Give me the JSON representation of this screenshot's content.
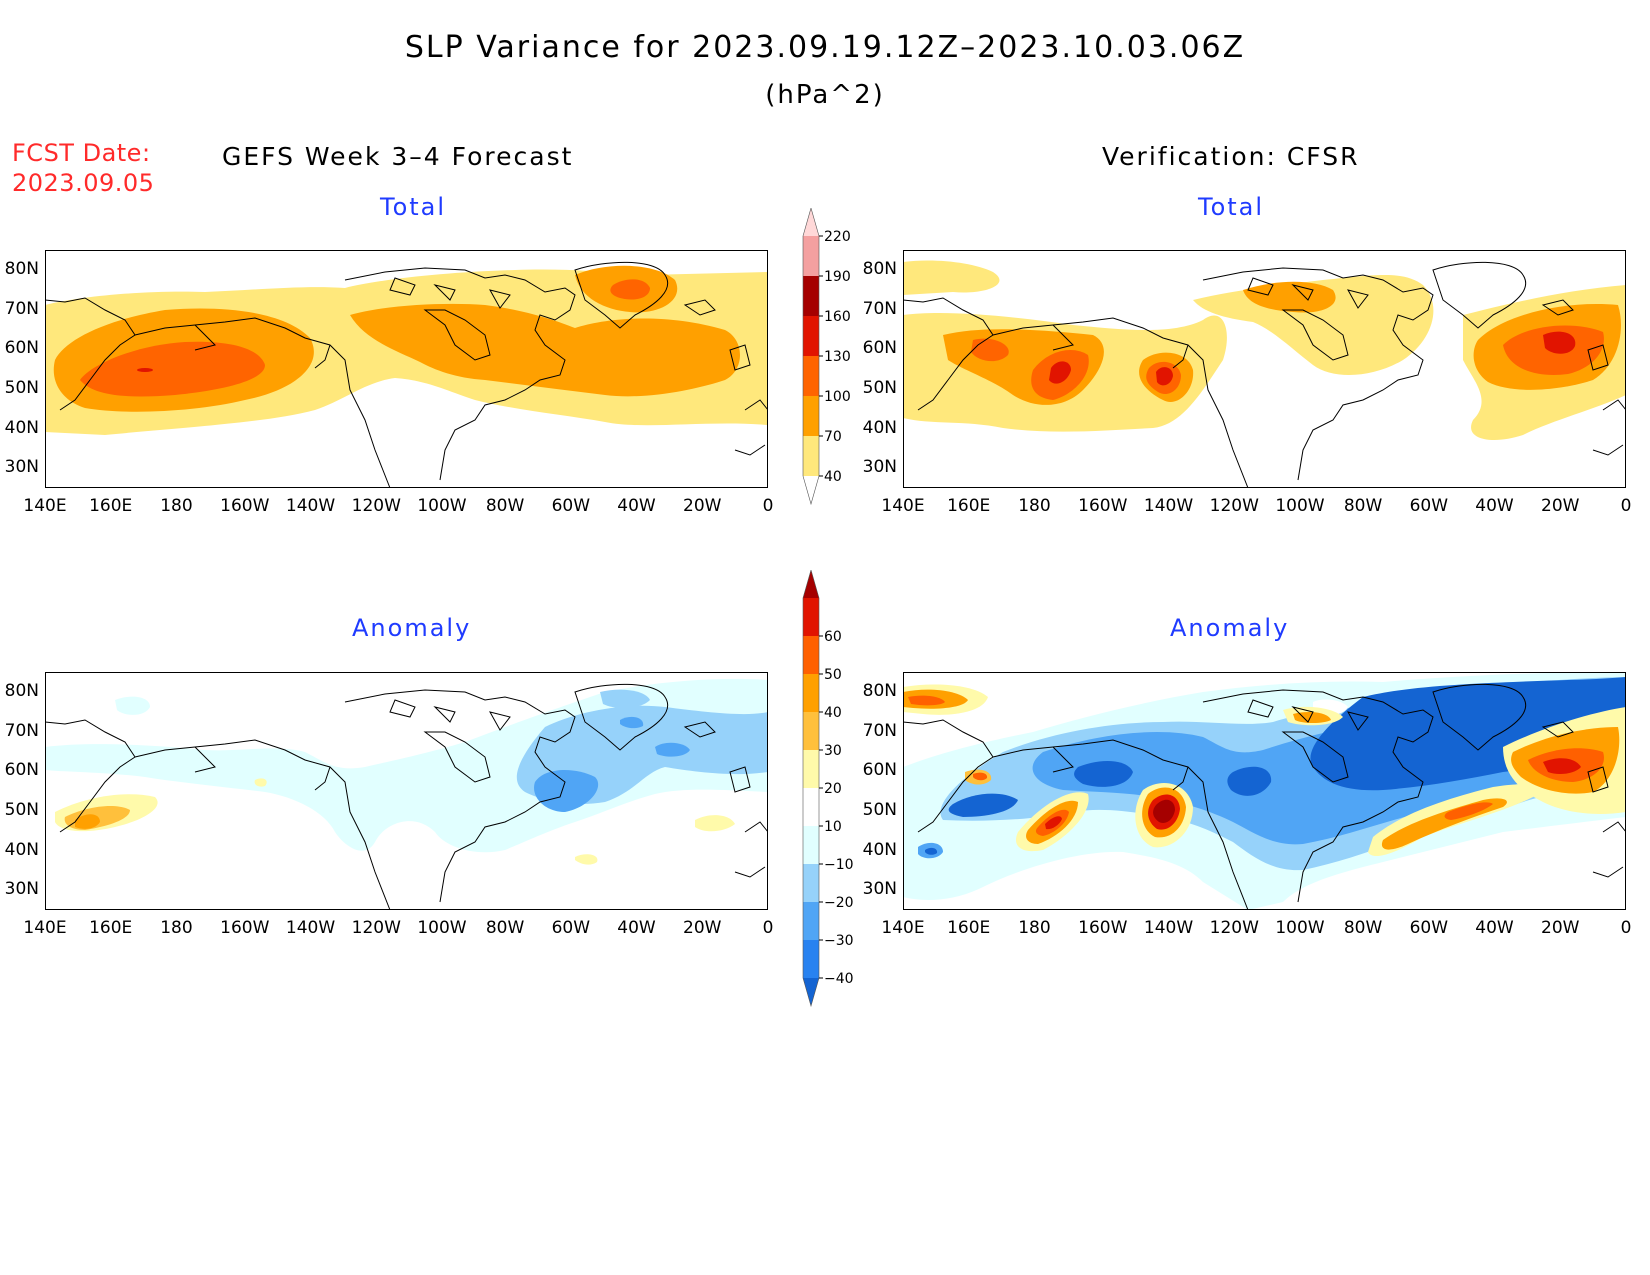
{
  "header": {
    "title": "SLP Variance for 2023.09.19.12Z–2023.10.03.06Z",
    "units": "(hPa^2)",
    "fcst_label": "FCST Date:",
    "fcst_date": "2023.09.05",
    "left_heading": "GEFS Week 3–4 Forecast",
    "right_heading": "Verification: CFSR"
  },
  "panels": {
    "fc_total_label": "Total",
    "ver_total_label": "Total",
    "fc_anom_label": "Anomaly",
    "ver_anom_label": "Anomaly"
  },
  "axes": {
    "lon_ticks": [
      "140E",
      "160E",
      "180",
      "160W",
      "140W",
      "120W",
      "100W",
      "80W",
      "60W",
      "40W",
      "20W",
      "0"
    ],
    "lat_ticks": [
      "80N",
      "70N",
      "60N",
      "50N",
      "40N",
      "30N"
    ],
    "lon_range": [
      140,
      360
    ],
    "lat_range": [
      25,
      85
    ]
  },
  "colorbars": {
    "total": {
      "levels": [
        "40",
        "70",
        "100",
        "130",
        "160",
        "190",
        "220"
      ],
      "colors": [
        "#ffffff",
        "#ffe87c",
        "#ffa000",
        "#ff6400",
        "#e11400",
        "#a50000",
        "#f4a0a0",
        "#ffd8d8"
      ]
    },
    "anomaly": {
      "levels": [
        "−40",
        "−30",
        "−20",
        "−10",
        "10",
        "20",
        "30",
        "40",
        "50",
        "60"
      ],
      "colors": [
        "#1464d2",
        "#2882f0",
        "#50a5f5",
        "#96d2fa",
        "#e1ffff",
        "#ffffff",
        "#fffaaa",
        "#ffc03c",
        "#ffa000",
        "#ff6000",
        "#e11400",
        "#a50000"
      ]
    }
  },
  "chart_data": {
    "type": "heatmap",
    "note_fields": [
      "forecast total",
      "verification total",
      "forecast anomaly",
      "verification anomaly"
    ]
  }
}
